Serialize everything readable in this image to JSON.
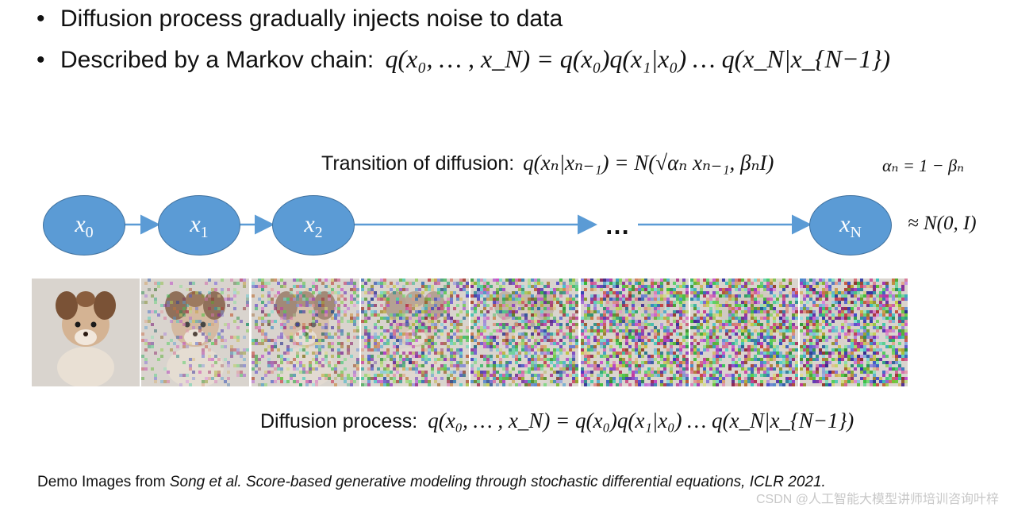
{
  "bullets": [
    {
      "text": "Diffusion process gradually injects noise to data"
    },
    {
      "text": "Described by a Markov chain:",
      "math": "q(x₀, … , x_N) = q(x₀)q(x₁|x₀) … q(x_N|x_{N−1})"
    }
  ],
  "transition": {
    "label": "Transition of diffusion:",
    "math": "q(xₙ|xₙ₋₁) = N(√αₙ xₙ₋₁, βₙI)",
    "alpha_def": "αₙ = 1 − βₙ"
  },
  "chain": {
    "nodes": [
      {
        "label": "x",
        "sub": "0"
      },
      {
        "label": "x",
        "sub": "1"
      },
      {
        "label": "x",
        "sub": "2"
      },
      {
        "label": "x",
        "sub": "N"
      }
    ],
    "ellipsis": "…",
    "limit": "≈ N(0, I)"
  },
  "frames": [
    {
      "noise": 0.0
    },
    {
      "noise": 0.25
    },
    {
      "noise": 0.45
    },
    {
      "noise": 0.65
    },
    {
      "noise": 0.8
    },
    {
      "noise": 0.92
    },
    {
      "noise": 0.97
    },
    {
      "noise": 1.0
    }
  ],
  "caption": {
    "label": "Diffusion process:",
    "math": "q(x₀, … , x_N) = q(x₀)q(x₁|x₀) … q(x_N|x_{N−1})"
  },
  "footnote": {
    "prefix": "Demo Images from ",
    "italic": "Song et al. Score-based generative modeling through stochastic differential equations, ICLR 2021."
  },
  "watermark": "CSDN @人工智能大模型讲师培训咨询叶梓",
  "colors": {
    "node_fill": "#5b9bd5",
    "arrow": "#5b9bd5"
  }
}
